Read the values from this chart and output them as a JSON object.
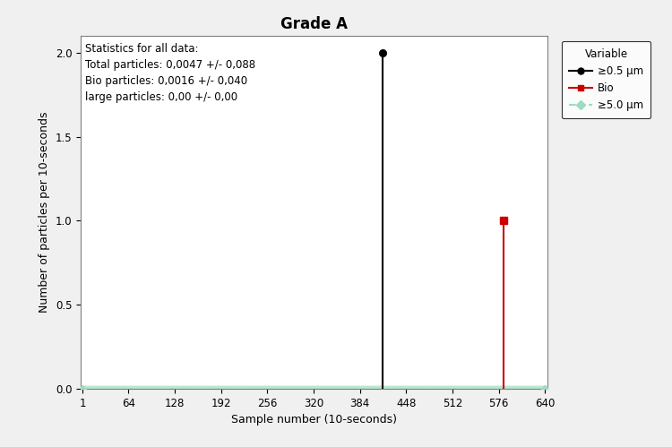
{
  "title": "Grade A",
  "xlabel": "Sample number (10-seconds)",
  "ylabel": "Number of particles per 10-seconds",
  "xlim": [
    1,
    640
  ],
  "ylim": [
    0.0,
    2.1
  ],
  "x_ticks": [
    1,
    64,
    128,
    192,
    256,
    320,
    384,
    448,
    512,
    576,
    640
  ],
  "y_ticks": [
    0.0,
    0.5,
    1.0,
    1.5,
    2.0
  ],
  "total_x": 415,
  "total_y": 2.0,
  "bio_x": 583,
  "bio_y": 1.0,
  "n_samples": 640,
  "annotation_text": "Statistics for all data:\nTotal particles: 0,0047 +/- 0,088\nBio particles: 0,0016 +/- 0,040\nlarge particles: 0,00 +/- 0,00",
  "legend_title": "Variable",
  "legend_entries": [
    {
      "label": "≥0.5 μm",
      "color": "#000000",
      "marker": "o",
      "linestyle": "-"
    },
    {
      "label": "Bio",
      "color": "#cc0000",
      "marker": "s",
      "linestyle": "-"
    },
    {
      "label": "≥5.0 μm",
      "color": "#99ddc0",
      "marker": "D",
      "linestyle": "--"
    }
  ],
  "bg_color": "#f0f0f0",
  "plot_bg_color": "#ffffff",
  "green_fill_color": "#b8e8d0",
  "green_line_color": "#99ddc0",
  "title_fontsize": 12,
  "label_fontsize": 9,
  "tick_fontsize": 8.5,
  "annot_fontsize": 8.5,
  "legend_fontsize": 8.5
}
